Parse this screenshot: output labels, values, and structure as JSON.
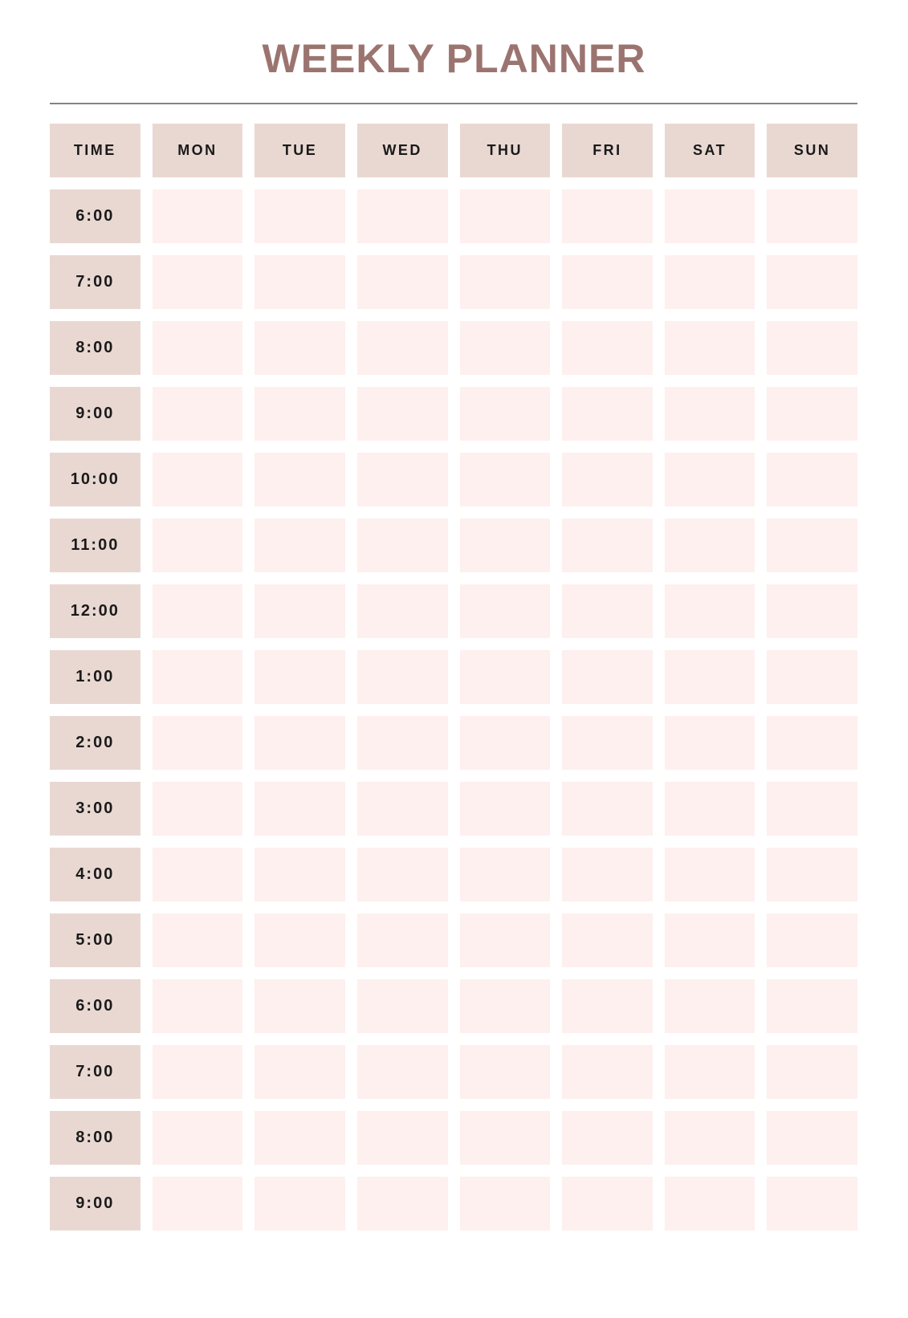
{
  "page": {
    "title": "WEEKLY PLANNER"
  },
  "planner": {
    "time_column_header": "TIME",
    "columns": [
      "TIME",
      "MON",
      "TUE",
      "WED",
      "THU",
      "FRI",
      "SAT",
      "SUN"
    ],
    "day_columns": [
      "MON",
      "TUE",
      "WED",
      "THU",
      "FRI",
      "SAT",
      "SUN"
    ],
    "times": [
      "6:00",
      "7:00",
      "8:00",
      "9:00",
      "10:00",
      "11:00",
      "12:00",
      "1:00",
      "2:00",
      "3:00",
      "4:00",
      "5:00",
      "6:00",
      "7:00",
      "8:00",
      "9:00"
    ],
    "slot_value": ""
  },
  "colors": {
    "title": "#9b7470",
    "divider": "#8b8081",
    "label_cell_bg": "#e9d8d2",
    "slot_cell_bg": "#fdf0ee",
    "cell_text": "#1a1a1a",
    "page_bg": "#ffffff"
  }
}
